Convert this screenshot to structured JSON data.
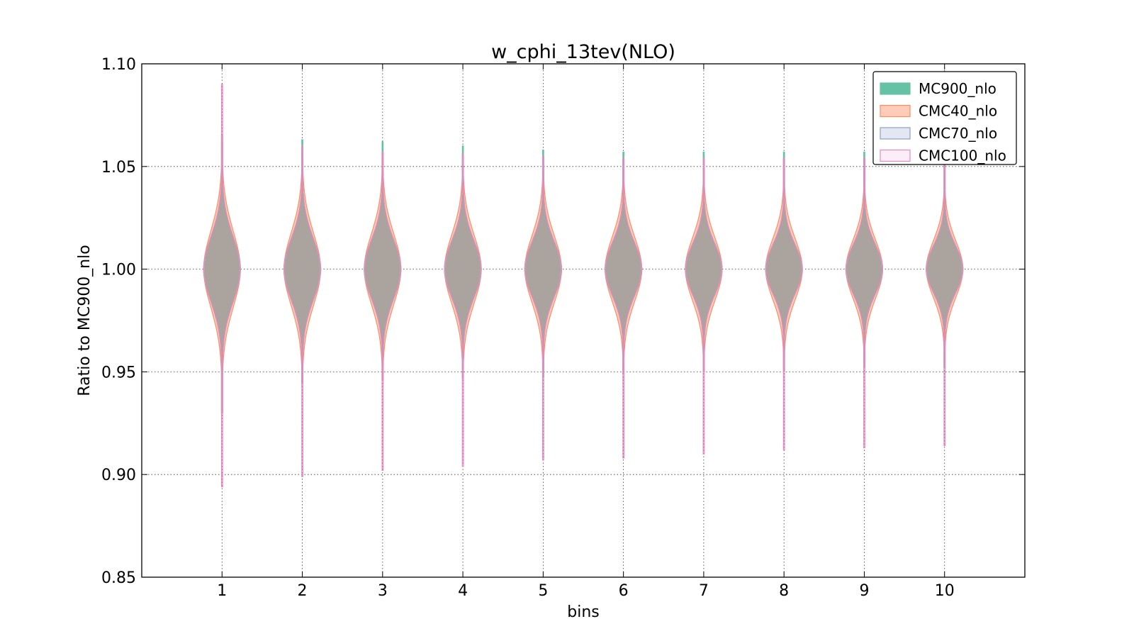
{
  "chart_data": {
    "type": "violin",
    "title": "w_cphi_13tev(NLO)",
    "xlabel": "bins",
    "ylabel": "Ratio to MC900_nlo",
    "categories": [
      "1",
      "2",
      "3",
      "4",
      "5",
      "6",
      "7",
      "8",
      "9",
      "10"
    ],
    "xlim": [
      0,
      11
    ],
    "ylim": [
      0.85,
      1.1
    ],
    "yticks": [
      "0.85",
      "0.90",
      "0.95",
      "1.00",
      "1.05",
      "1.10"
    ],
    "grid": true,
    "legend_position": "top-right",
    "series": [
      {
        "name": "MC900_nlo",
        "color": "#66c2a5",
        "fill_opacity": 1.0,
        "width_scale": 0.94,
        "min": [
          0.93,
          0.945,
          0.946,
          0.947,
          0.948,
          0.949,
          0.95,
          0.951,
          0.952,
          0.952
        ],
        "max": [
          1.065,
          1.063,
          1.062,
          1.06,
          1.058,
          1.057,
          1.057,
          1.057,
          1.057,
          1.052
        ],
        "spread": [
          0.016,
          0.015,
          0.0145,
          0.014,
          0.0135,
          0.013,
          0.0125,
          0.012,
          0.012,
          0.0115
        ]
      },
      {
        "name": "CMC40_nlo",
        "color": "#fc8d62",
        "fill_opacity": 0.45,
        "width_scale": 1.0,
        "min": [
          0.93,
          0.945,
          0.946,
          0.947,
          0.948,
          0.949,
          0.95,
          0.951,
          0.952,
          0.952
        ],
        "max": [
          1.065,
          1.058,
          1.054,
          1.051,
          1.049,
          1.049,
          1.049,
          1.05,
          1.05,
          1.05
        ],
        "spread": [
          0.019,
          0.018,
          0.0175,
          0.017,
          0.0165,
          0.016,
          0.0155,
          0.015,
          0.0145,
          0.014
        ]
      },
      {
        "name": "CMC70_nlo",
        "color": "#8da0cb",
        "fill_opacity": 0.25,
        "width_scale": 1.0,
        "min": [
          0.93,
          0.945,
          0.946,
          0.947,
          0.948,
          0.949,
          0.95,
          0.951,
          0.952,
          0.952
        ],
        "max": [
          1.062,
          1.058,
          1.057,
          1.056,
          1.055,
          1.054,
          1.054,
          1.054,
          1.054,
          1.05
        ],
        "spread": [
          0.016,
          0.015,
          0.0145,
          0.014,
          0.0135,
          0.013,
          0.0125,
          0.012,
          0.012,
          0.0115
        ]
      },
      {
        "name": "CMC100_nlo",
        "color": "#e78ac3",
        "fill_opacity": 0.15,
        "width_scale": 1.0,
        "min": [
          0.894,
          0.899,
          0.902,
          0.904,
          0.907,
          0.908,
          0.91,
          0.912,
          0.913,
          0.914
        ],
        "max": [
          1.09,
          1.06,
          1.057,
          1.056,
          1.055,
          1.054,
          1.054,
          1.054,
          1.054,
          1.052
        ],
        "spread": [
          0.016,
          0.015,
          0.0145,
          0.014,
          0.0135,
          0.013,
          0.0125,
          0.012,
          0.012,
          0.0115
        ]
      }
    ]
  }
}
